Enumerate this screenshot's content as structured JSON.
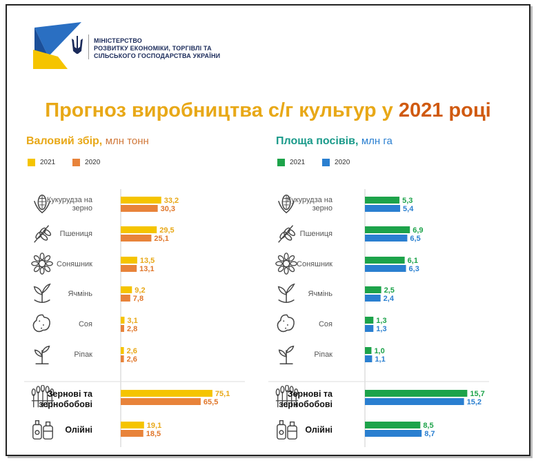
{
  "header": {
    "ministry_line1": "МІНІСТЕРСТВО",
    "ministry_line2": "РОЗВИТКУ ЕКОНОМІКИ, ТОРГІВЛІ ТА",
    "ministry_line3": "СІЛЬСЬКОГО ГОСПОДАРСТВА УКРАЇНИ",
    "title_part1": "Прогноз виробництва с/г культур у ",
    "title_part2": "2021 році"
  },
  "colors": {
    "harvest_2021": "#f5c400",
    "harvest_2020": "#e8833a",
    "area_2021": "#1da34a",
    "area_2020": "#2a7fd0",
    "title_yellow": "#e8a817",
    "title_orange": "#d05a10"
  },
  "crops": [
    {
      "label": "Кукурудза на зерно",
      "icon": "corn-icon"
    },
    {
      "label": "Пшениця",
      "icon": "wheat-icon"
    },
    {
      "label": "Соняшник",
      "icon": "sunflower-icon"
    },
    {
      "label": "Ячмінь",
      "icon": "barley-sprout-icon"
    },
    {
      "label": "Соя",
      "icon": "peanut-soy-icon"
    },
    {
      "label": "Ріпак",
      "icon": "rapeseed-sprout-icon"
    },
    {
      "label": "Зернові та зернобобові",
      "icon": "grain-sheaves-icon"
    },
    {
      "label": "Олійні",
      "icon": "oil-bottles-icon"
    }
  ],
  "chart_data": [
    {
      "type": "bar",
      "orientation": "horizontal",
      "title": "Валовий збір",
      "unit": "млн тонн",
      "categories": [
        "Кукурудза на зерно",
        "Пшениця",
        "Соняшник",
        "Ячмінь",
        "Соя",
        "Ріпак",
        "Зернові та зернобобові",
        "Олійні"
      ],
      "series": [
        {
          "name": "2021",
          "values": [
            33.2,
            29.5,
            13.5,
            9.2,
            3.1,
            2.6,
            75.1,
            19.1
          ],
          "labels": [
            "33,2",
            "29,5",
            "13,5",
            "9,2",
            "3,1",
            "2,6",
            "75,1",
            "19,1"
          ]
        },
        {
          "name": "2020",
          "values": [
            30.3,
            25.1,
            13.1,
            7.8,
            2.8,
            2.6,
            65.5,
            18.5
          ],
          "labels": [
            "30,3",
            "25,1",
            "13,1",
            "7,8",
            "2,8",
            "2,6",
            "65,5",
            "18,5"
          ]
        }
      ],
      "legend": "top-left"
    },
    {
      "type": "bar",
      "orientation": "horizontal",
      "title": "Площа посівів",
      "unit": "млн га",
      "categories": [
        "Кукурудза на зерно",
        "Пшениця",
        "Соняшник",
        "Ячмінь",
        "Соя",
        "Ріпак",
        "Зернові та зернобобові",
        "Олійні"
      ],
      "series": [
        {
          "name": "2021",
          "values": [
            5.3,
            6.9,
            6.1,
            2.5,
            1.3,
            1.0,
            15.7,
            8.5
          ],
          "labels": [
            "5,3",
            "6,9",
            "6,1",
            "2,5",
            "1,3",
            "1,0",
            "15,7",
            "8,5"
          ]
        },
        {
          "name": "2020",
          "values": [
            5.4,
            6.5,
            6.3,
            2.4,
            1.3,
            1.1,
            15.2,
            8.7
          ],
          "labels": [
            "5,4",
            "6,5",
            "6,3",
            "2,4",
            "1,3",
            "1,1",
            "15,2",
            "8,7"
          ]
        }
      ],
      "legend": "top-left"
    }
  ]
}
